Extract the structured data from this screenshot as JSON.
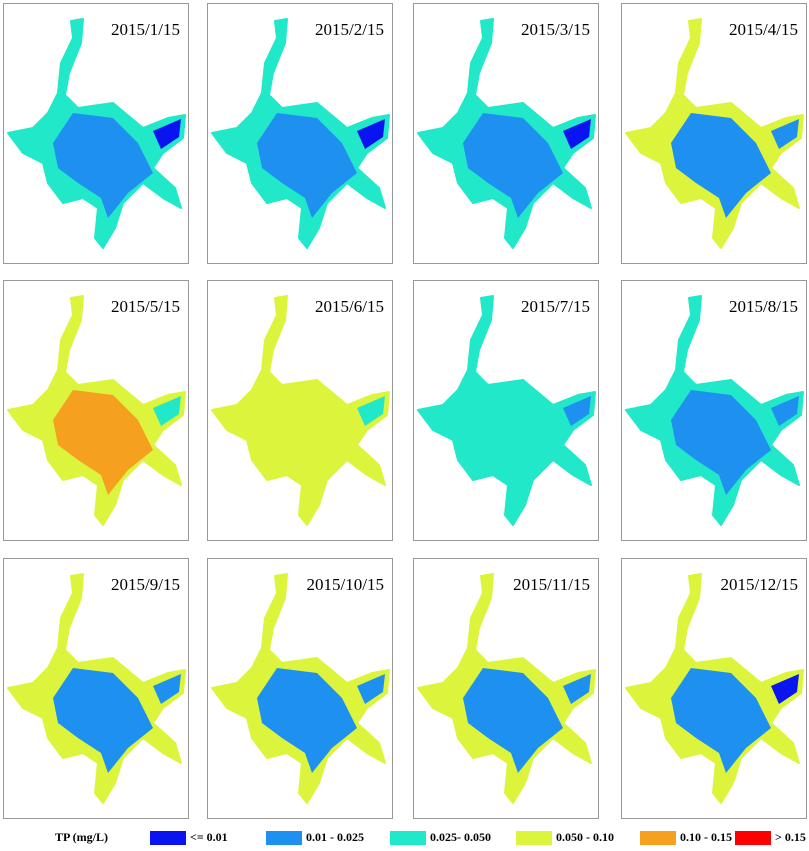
{
  "panels": [
    {
      "date": "2015/1/15"
    },
    {
      "date": "2015/2/15"
    },
    {
      "date": "2015/3/15"
    },
    {
      "date": "2015/4/15"
    },
    {
      "date": "2015/5/15"
    },
    {
      "date": "2015/6/15"
    },
    {
      "date": "2015/7/15"
    },
    {
      "date": "2015/8/15"
    },
    {
      "date": "2015/9/15"
    },
    {
      "date": "2015/10/15"
    },
    {
      "date": "2015/11/15"
    },
    {
      "date": "2015/12/15"
    }
  ],
  "legend": {
    "title": "TP (mg/L)",
    "items": [
      {
        "label": "<= 0.01",
        "color": "#0a14f0"
      },
      {
        "label": "0.01 - 0.025",
        "color": "#1e90f0"
      },
      {
        "label": "0.025- 0.050",
        "color": "#20e8c8"
      },
      {
        "label": "0.050 - 0.10",
        "color": "#dcf53c"
      },
      {
        "label": "0.10 - 0.15",
        "color": "#f5a01e"
      },
      {
        "label": "> 0.15",
        "color": "#ff0000"
      }
    ]
  }
}
